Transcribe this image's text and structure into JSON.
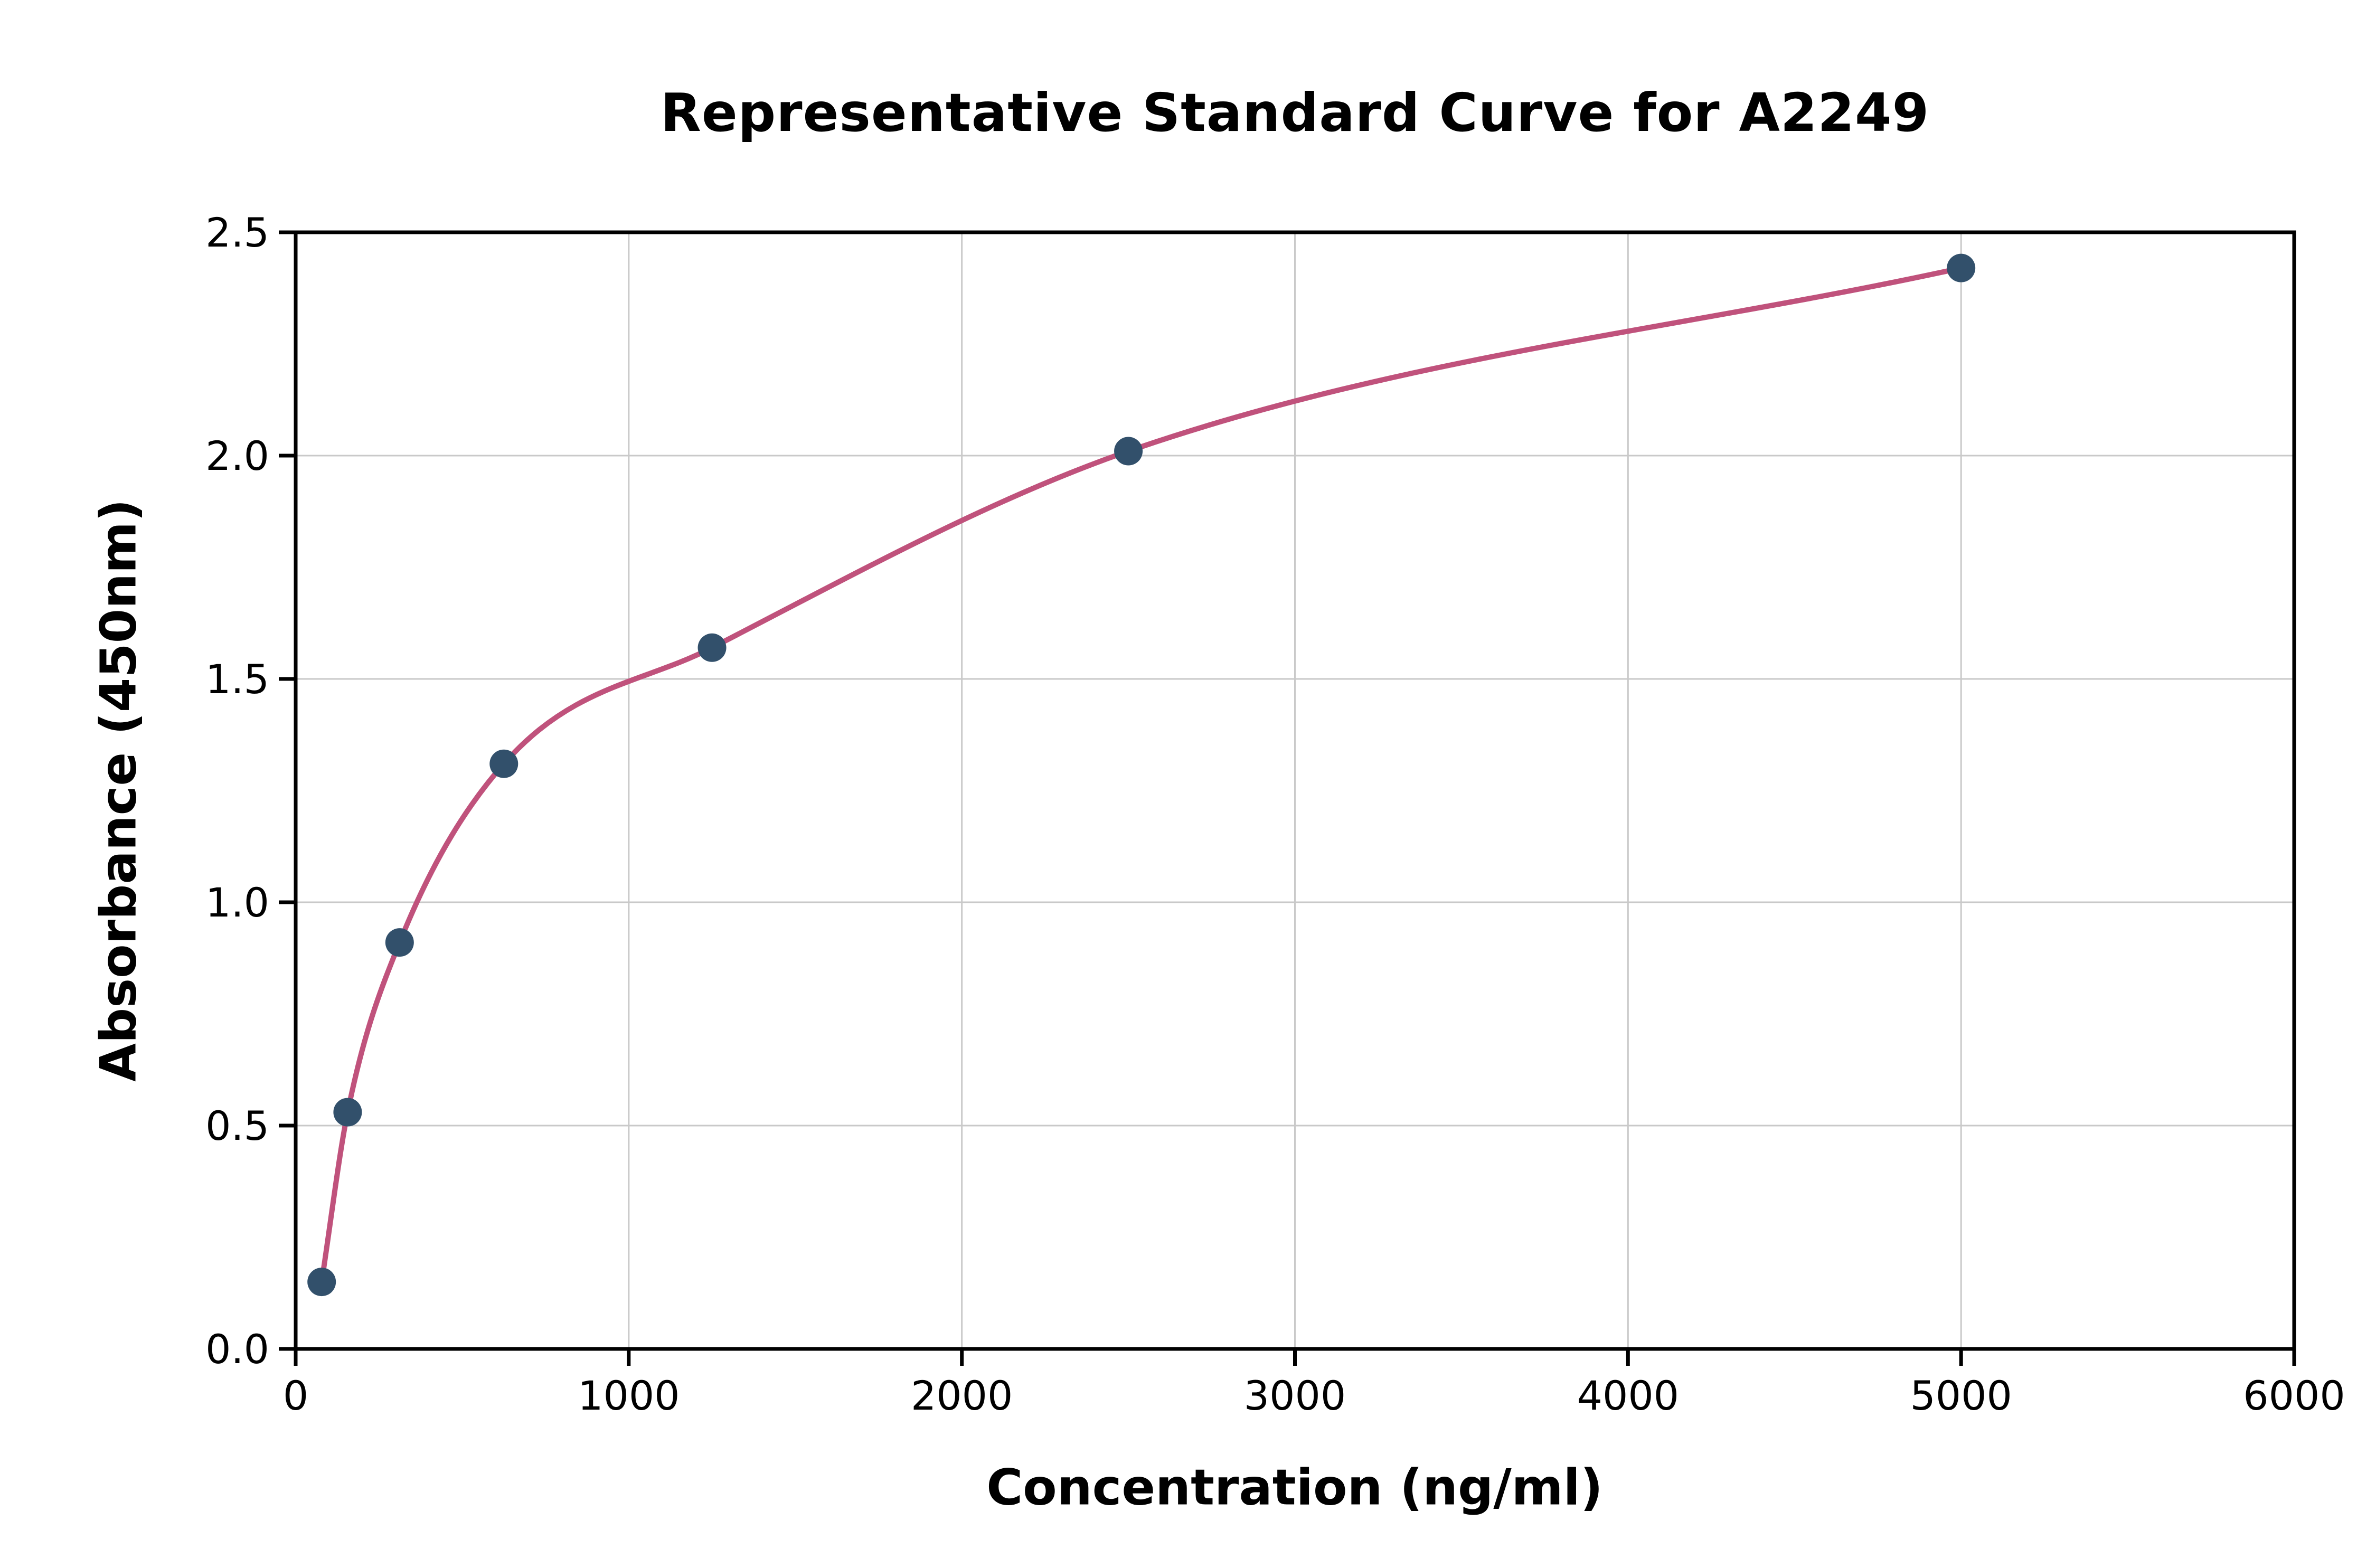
{
  "chart_data": {
    "type": "scatter",
    "title": "Representative Standard Curve for A2249",
    "xlabel": "Concentration (ng/ml)",
    "ylabel": "Absorbance (450nm)",
    "xlim": [
      0,
      6000
    ],
    "ylim": [
      0,
      2.5
    ],
    "x_ticks": [
      0,
      1000,
      2000,
      3000,
      4000,
      5000,
      6000
    ],
    "x_tick_labels": [
      "0",
      "1000",
      "2000",
      "3000",
      "4000",
      "5000",
      "6000"
    ],
    "y_ticks": [
      0,
      0.5,
      1.0,
      1.5,
      2.0,
      2.5
    ],
    "y_tick_labels": [
      "0.0",
      "0.5",
      "1.0",
      "1.5",
      "2.0",
      "2.5"
    ],
    "grid": true,
    "legend": "none",
    "series": [
      {
        "name": "Standards",
        "type": "scatter",
        "x": [
          78,
          156,
          312,
          625,
          1250,
          2500,
          5000
        ],
        "y": [
          0.15,
          0.53,
          0.91,
          1.31,
          1.57,
          2.01,
          2.42
        ]
      },
      {
        "name": "Fitted curve",
        "type": "line",
        "fit_through": "Standards"
      }
    ],
    "colors": {
      "curve": "#c0527c",
      "point": "#32506b",
      "grid": "#c9c9c9",
      "axis": "#000000",
      "background": "#ffffff"
    }
  }
}
